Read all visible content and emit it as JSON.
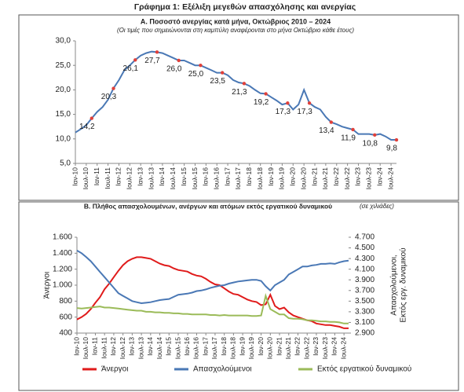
{
  "title": "Γράφημα 1: Εξέλιξη μεγεθών απασχόλησης και ανεργίας",
  "chart_data": [
    {
      "type": "line",
      "title": "Α. Ποσοστό ανεργίας κατά μήνα, Οκτώβριος 2010 – 2024",
      "subtitle": "(Οι τιμές που σημειώνονται στη καμπύλη αναφέρονται στο μήνα Οκτώβριο κάθε έτους)",
      "categories": [
        "Ιαν-10",
        null,
        "Ιουλ-10",
        null,
        "Ιαν-11",
        null,
        "Ιουλ-11",
        null,
        "Ιαν-12",
        null,
        "Ιουλ-12",
        null,
        "Ιαν-13",
        null,
        "Ιουλ-13",
        null,
        "Ιαν-14",
        null,
        "Ιουλ-14",
        null,
        "Ιαν-15",
        null,
        "Ιουλ-15",
        null,
        "Ιαν-16",
        null,
        "Ιουλ-16",
        null,
        "Ιαν-17",
        null,
        "Ιουλ-17",
        null,
        "Ιαν-18",
        null,
        "Ιουλ-18",
        null,
        "Ιαν-19",
        null,
        "Ιουλ-19",
        null,
        "Ιαν-20",
        null,
        "Ιουλ-20",
        null,
        "Ιαν-21",
        null,
        "Ιουλ-21",
        null,
        "Ιαν-22",
        null,
        "Ιουλ-22",
        null,
        "Ιαν-23",
        null,
        "Ιουλ-23",
        null,
        "Ιαν-24",
        null,
        "Ιουλ-24",
        null
      ],
      "series": [
        {
          "color": "#4a78b5",
          "marker_color": "#e0403a",
          "values": [
            11.3,
            12.0,
            12.8,
            14.2,
            15.5,
            16.5,
            18.0,
            20.3,
            22.0,
            24.0,
            25.0,
            26.1,
            27.0,
            27.5,
            27.8,
            27.7,
            27.5,
            27.0,
            26.5,
            26.0,
            26.0,
            25.5,
            25.0,
            25.0,
            24.5,
            24.0,
            23.5,
            23.5,
            23.0,
            22.0,
            21.5,
            21.3,
            20.8,
            20.0,
            19.3,
            19.2,
            18.5,
            17.8,
            17.0,
            17.3,
            16.0,
            17.0,
            20.0,
            17.3,
            16.5,
            16.0,
            14.5,
            13.4,
            13.0,
            12.5,
            12.2,
            11.9,
            11.0,
            11.0,
            11.0,
            10.8,
            11.0,
            10.5,
            9.8,
            9.8
          ],
          "value_labels": [
            null,
            null,
            null,
            "14,2",
            null,
            null,
            null,
            "20,3",
            null,
            null,
            null,
            "26,1",
            null,
            null,
            null,
            "27,7",
            null,
            null,
            null,
            "26,0",
            null,
            null,
            null,
            "25,0",
            null,
            null,
            null,
            "23,5",
            null,
            null,
            null,
            "21,3",
            null,
            null,
            null,
            "19,2",
            null,
            null,
            null,
            "17,3",
            null,
            null,
            null,
            "17,3",
            null,
            null,
            null,
            "13,4",
            null,
            null,
            null,
            "11,9",
            null,
            null,
            null,
            "10,8",
            null,
            null,
            null,
            "9,8"
          ]
        }
      ],
      "ylim": [
        5,
        30
      ],
      "yticks": [
        {
          "value": 5,
          "label": "5,0"
        },
        {
          "value": 10,
          "label": "10,0"
        },
        {
          "value": 15,
          "label": "15,0"
        },
        {
          "value": 20,
          "label": "20,0"
        },
        {
          "value": 25,
          "label": "25,0"
        },
        {
          "value": 30,
          "label": "30,0"
        }
      ],
      "grid": false
    },
    {
      "type": "line",
      "title": "Β. Πλήθος απασχολουμένων, ανέργων και ατόμων εκτός εργατικού δυναμικού",
      "subtitle": "(σε χιλιάδες)",
      "y_label": "Άνεργοι",
      "y2_label": [
        "Απασχολούμενοι,",
        "Εκτός εργ. δυναμικού"
      ],
      "categories": [
        "Ιαν-10",
        null,
        "Ιουλ-10",
        null,
        "Ιαν-11",
        null,
        "Ιουλ-11",
        null,
        "Ιαν-12",
        null,
        "Ιουλ-12",
        null,
        "Ιαν-13",
        null,
        "Ιουλ-13",
        null,
        "Ιαν-14",
        null,
        "Ιουλ-14",
        null,
        "Ιαν-15",
        null,
        "Ιουλ-15",
        null,
        "Ιαν-16",
        null,
        "Ιουλ-16",
        null,
        "Ιαν-17",
        null,
        "Ιουλ-17",
        null,
        "Ιαν-18",
        null,
        "Ιουλ-18",
        null,
        "Ιαν-19",
        null,
        "Ιουλ-19",
        null,
        "Ιαν-20",
        null,
        "Ιουλ-20",
        null,
        "Ιαν-21",
        null,
        "Ιουλ-21",
        null,
        "Ιαν-22",
        null,
        "Ιουλ-22",
        null,
        "Ιαν-23",
        null,
        "Ιουλ-23",
        null,
        "Ιαν-24",
        null,
        "Ιουλ-24",
        null
      ],
      "series": [
        {
          "name": "Άνεργοι",
          "color": "#e01b1b",
          "values": [
            570,
            600,
            640,
            700,
            780,
            850,
            950,
            1020,
            1100,
            1180,
            1250,
            1300,
            1330,
            1350,
            1350,
            1340,
            1330,
            1300,
            1270,
            1250,
            1240,
            1210,
            1190,
            1180,
            1170,
            1140,
            1120,
            1110,
            1080,
            1040,
            1010,
            1000,
            960,
            920,
            890,
            880,
            850,
            820,
            800,
            790,
            750,
            760,
            880,
            740,
            700,
            720,
            660,
            620,
            600,
            580,
            560,
            550,
            520,
            510,
            500,
            500,
            490,
            480,
            460,
            460
          ]
        },
        {
          "name": "Απασχολούμενοι",
          "color": "#4a78b5",
          "axis": "y2",
          "values": [
            4450,
            4400,
            4330,
            4250,
            4150,
            4050,
            3950,
            3850,
            3750,
            3650,
            3600,
            3550,
            3500,
            3480,
            3460,
            3470,
            3480,
            3500,
            3520,
            3530,
            3540,
            3580,
            3620,
            3630,
            3640,
            3660,
            3690,
            3700,
            3720,
            3750,
            3770,
            3790,
            3800,
            3830,
            3850,
            3870,
            3880,
            3890,
            3900,
            3900,
            3880,
            3780,
            3700,
            3800,
            3850,
            3900,
            4000,
            4050,
            4100,
            4150,
            4150,
            4170,
            4180,
            4200,
            4200,
            4210,
            4200,
            4230,
            4250,
            4260
          ]
        },
        {
          "name": "Εκτός εργατικού δυναμικού",
          "color": "#9bbb59",
          "axis": "y2",
          "values": [
            3370,
            3360,
            3370,
            3380,
            3390,
            3400,
            3380,
            3380,
            3370,
            3360,
            3350,
            3340,
            3330,
            3320,
            3320,
            3300,
            3300,
            3290,
            3290,
            3280,
            3280,
            3270,
            3270,
            3260,
            3260,
            3250,
            3250,
            3250,
            3250,
            3240,
            3240,
            3230,
            3240,
            3230,
            3230,
            3230,
            3230,
            3230,
            3220,
            3220,
            3230,
            3600,
            3350,
            3300,
            3250,
            3250,
            3180,
            3170,
            3170,
            3160,
            3140,
            3140,
            3130,
            3120,
            3120,
            3110,
            3110,
            3100,
            3080,
            3080
          ]
        }
      ],
      "ylim": [
        400,
        1600
      ],
      "yticks": [
        400,
        600,
        800,
        {
          "value": 1000,
          "label": "1.000"
        },
        {
          "value": 1200,
          "label": "1.200"
        },
        {
          "value": 1400,
          "label": "1.400"
        },
        {
          "value": 1600,
          "label": "1.600"
        }
      ],
      "y2lim": [
        2900,
        4700
      ],
      "y2ticks": [
        {
          "value": 2900,
          "label": "2.900"
        },
        {
          "value": 3100,
          "label": "3.100"
        },
        {
          "value": 3300,
          "label": "3.300"
        },
        {
          "value": 3500,
          "label": "3.500"
        },
        {
          "value": 3700,
          "label": "3.700"
        },
        {
          "value": 3900,
          "label": "3.900"
        },
        {
          "value": 4100,
          "label": "4.100"
        },
        {
          "value": 4300,
          "label": "4.300"
        },
        {
          "value": 4500,
          "label": "4.500"
        },
        {
          "value": 4700,
          "label": "4.700"
        }
      ],
      "grid": false,
      "legend": "bottom"
    }
  ]
}
